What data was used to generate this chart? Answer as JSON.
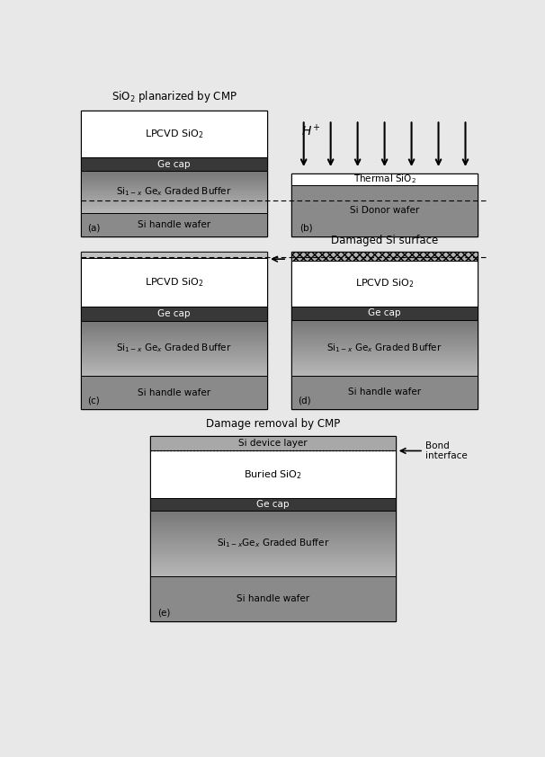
{
  "bg_color": "#e8e8e8",
  "title_fontsize": 8.5,
  "label_fontsize": 8,
  "small_fontsize": 7.5,
  "colors": {
    "white": "#ffffff",
    "ge_cap": "#3a3a3a",
    "ge_cap_text": "#ffffff",
    "graded_top": "#7a7a7a",
    "graded_bot": "#b8b8b8",
    "si_handle": "#8a8a8a",
    "si_device": "#a8a8a8",
    "damaged_si": "#b5b5b5",
    "thermal_sio2": "#ffffff",
    "black": "#000000"
  },
  "panels": {
    "a_title": "SiO$_2$ planarized by CMP",
    "d_title": "Damaged Si surface",
    "e_title": "Damage removal by CMP"
  }
}
